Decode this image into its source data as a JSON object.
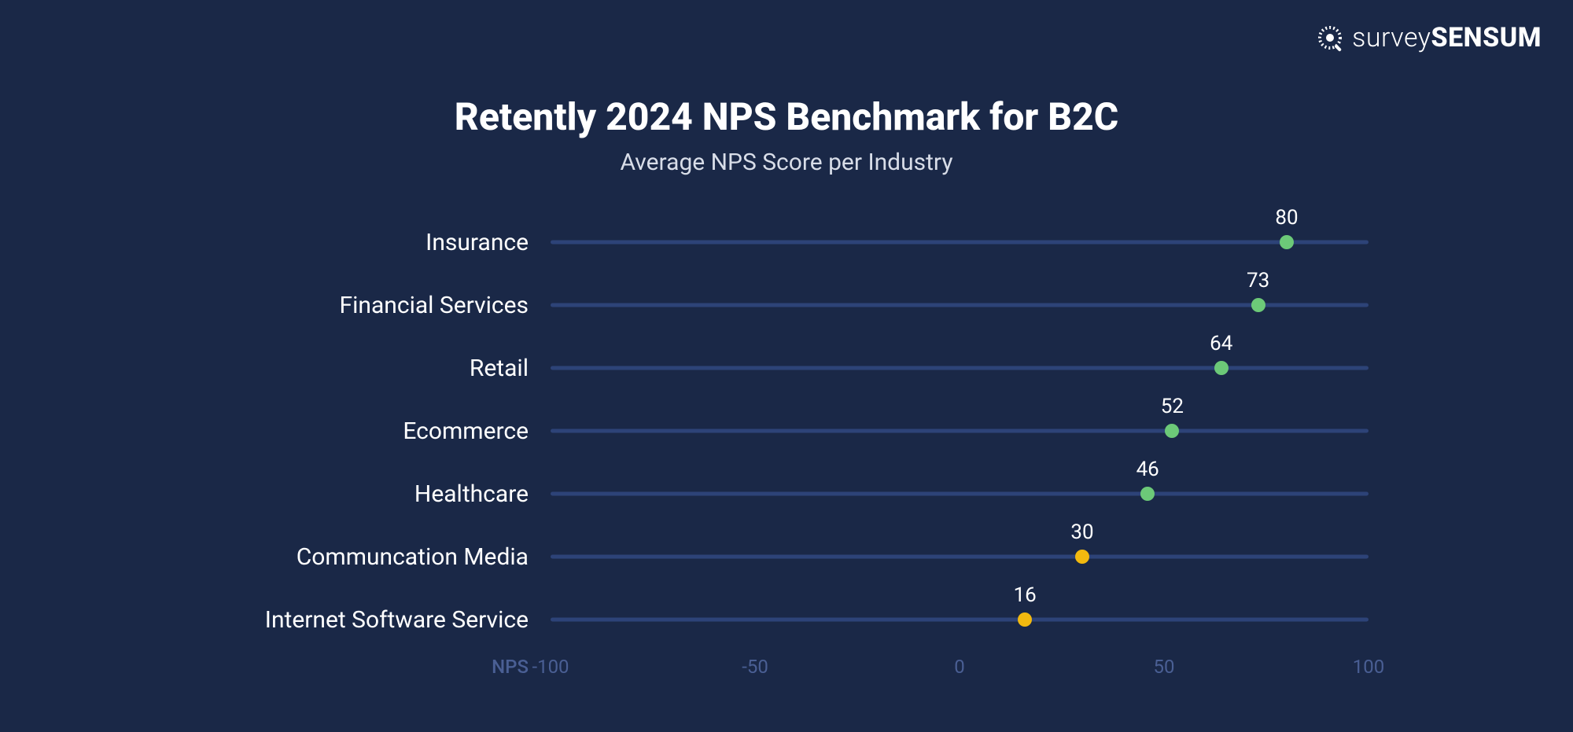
{
  "brand": {
    "name_thin": "survey",
    "name_bold": "SENSUM",
    "icon_color": "#ffffff"
  },
  "chart": {
    "type": "dot-plot-horizontal",
    "title": "Retently 2024 NPS Benchmark for B2C",
    "title_fontsize": 48,
    "title_weight": 800,
    "subtitle": "Average NPS Score per Industry",
    "subtitle_fontsize": 30,
    "background_color": "#1a2847",
    "track_color": "#2d4378",
    "track_height": 5,
    "text_color": "#ffffff",
    "axis_color": "#4a5f94",
    "label_fontsize": 30,
    "value_fontsize": 26,
    "tick_fontsize": 24,
    "dot_radius": 9,
    "xlim": [
      -100,
      100
    ],
    "x_axis_label": "NPS",
    "ticks": [
      {
        "value": -100,
        "label": "-100"
      },
      {
        "value": -50,
        "label": "-50"
      },
      {
        "value": 0,
        "label": "0"
      },
      {
        "value": 50,
        "label": "50"
      },
      {
        "value": 100,
        "label": "100"
      }
    ],
    "color_high": "#6cc978",
    "color_mid": "#f2b90f",
    "series": [
      {
        "label": "Insurance",
        "value": 80,
        "dot_color": "#6cc978"
      },
      {
        "label": "Financial Services",
        "value": 73,
        "dot_color": "#6cc978"
      },
      {
        "label": "Retail",
        "value": 64,
        "dot_color": "#6cc978"
      },
      {
        "label": "Ecommerce",
        "value": 52,
        "dot_color": "#6cc978"
      },
      {
        "label": "Healthcare",
        "value": 46,
        "dot_color": "#6cc978"
      },
      {
        "label": "Communcation Media",
        "value": 30,
        "dot_color": "#f2b90f"
      },
      {
        "label": "Internet Software Service",
        "value": 16,
        "dot_color": "#f2b90f"
      }
    ]
  }
}
